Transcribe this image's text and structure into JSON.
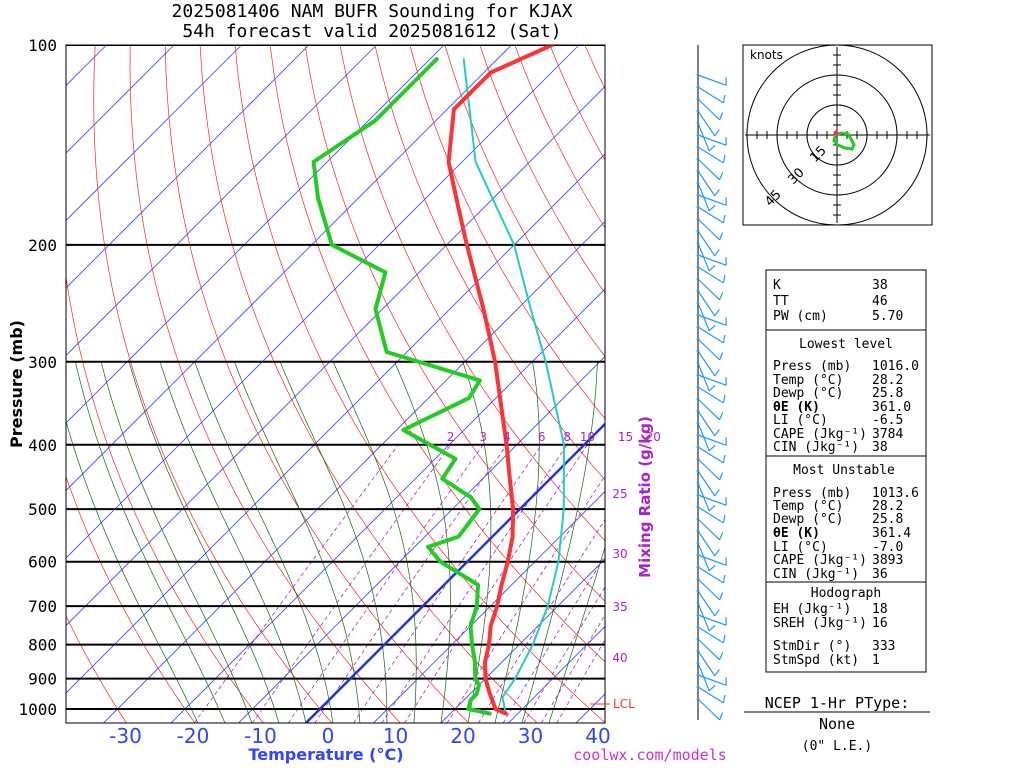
{
  "header": {
    "title_line1": "2025081406 NAM BUFR Sounding for KJAX",
    "title_line2": "54h forecast valid 2025081612 (Sat)"
  },
  "chart_data": {
    "type": "skew-t",
    "ylabel": "Pressure (mb)",
    "xlabel": "Temperature (°C)",
    "mixing_ratio_label": "Mixing Ratio (g/kg)",
    "pressure_ticks": [
      100,
      200,
      300,
      400,
      500,
      600,
      700,
      800,
      900,
      1000
    ],
    "temperature_ticks": [
      -30,
      -20,
      -10,
      0,
      10,
      20,
      30,
      40
    ],
    "mixing_ratio_ticks_top": [
      "2",
      "3",
      "4",
      "6",
      "8",
      "10",
      "15",
      "20"
    ],
    "mixing_ratio_ticks_side": [
      "25",
      "30",
      "35",
      "40"
    ],
    "lcl_label": "LCL",
    "colors": {
      "temperature": "#ff3333",
      "dewpoint": "#22cc22",
      "parcel": "#22cccc",
      "isotherm": "#3344ff",
      "dry_adiabat": "#ff2020",
      "moist_adiabat": "#116611",
      "mixing_ratio": "#aa22cc",
      "freezing_line": "#2233dd"
    },
    "series": [
      {
        "name": "Temperature",
        "points": [
          [
            1016,
            28.2
          ],
          [
            1000,
            26
          ],
          [
            950,
            23
          ],
          [
            900,
            20
          ],
          [
            850,
            17.5
          ],
          [
            800,
            15.5
          ],
          [
            750,
            13
          ],
          [
            700,
            11
          ],
          [
            650,
            8.5
          ],
          [
            600,
            6
          ],
          [
            550,
            3
          ],
          [
            500,
            -1
          ],
          [
            450,
            -6
          ],
          [
            400,
            -11.5
          ],
          [
            350,
            -18
          ],
          [
            300,
            -25.5
          ],
          [
            250,
            -35
          ],
          [
            200,
            -47
          ],
          [
            175,
            -54
          ],
          [
            150,
            -62
          ],
          [
            125,
            -69
          ],
          [
            110,
            -69
          ],
          [
            100,
            -64
          ]
        ]
      },
      {
        "name": "Dewpoint",
        "points": [
          [
            1016,
            25.8
          ],
          [
            1000,
            22
          ],
          [
            970,
            21
          ],
          [
            950,
            21
          ],
          [
            920,
            20
          ],
          [
            900,
            18.5
          ],
          [
            850,
            16
          ],
          [
            800,
            13
          ],
          [
            750,
            10
          ],
          [
            700,
            8
          ],
          [
            650,
            5
          ],
          [
            600,
            -4
          ],
          [
            570,
            -8
          ],
          [
            550,
            -5
          ],
          [
            500,
            -6
          ],
          [
            480,
            -9
          ],
          [
            450,
            -16
          ],
          [
            420,
            -17
          ],
          [
            380,
            -29
          ],
          [
            340,
            -24
          ],
          [
            320,
            -25
          ],
          [
            290,
            -43
          ],
          [
            250,
            -51
          ],
          [
            220,
            -55
          ],
          [
            200,
            -67
          ],
          [
            170,
            -76
          ],
          [
            150,
            -82
          ],
          [
            130,
            -79
          ],
          [
            110,
            -79
          ],
          [
            105,
            -79
          ]
        ]
      },
      {
        "name": "Parcel",
        "points": [
          [
            1016,
            28.2
          ],
          [
            960,
            25.3
          ],
          [
            900,
            24.4
          ],
          [
            800,
            22
          ],
          [
            700,
            18.5
          ],
          [
            600,
            13.5
          ],
          [
            500,
            6.5
          ],
          [
            400,
            -3
          ],
          [
            300,
            -18
          ],
          [
            250,
            -28
          ],
          [
            200,
            -40
          ],
          [
            150,
            -58
          ],
          [
            105,
            -75
          ]
        ]
      }
    ],
    "hodograph_rings": [
      "15",
      "30",
      "45"
    ],
    "hodograph_unit": "knots"
  },
  "indices": {
    "K": "38",
    "TT": "46",
    "PW": "5.70",
    "lowest": {
      "press": "1016.0",
      "temp": "28.2",
      "dewp": "25.8",
      "thetae": "361.0",
      "li": "-6.5",
      "cape": "3784",
      "cin": "38"
    },
    "unstable": {
      "press": "1013.6",
      "temp": "28.2",
      "dewp": "25.8",
      "thetae": "361.4",
      "li": "-7.0",
      "cape": "3893",
      "cin": "36"
    },
    "hodo": {
      "eh": "18",
      "sreh": "16",
      "stmdir": "333",
      "stmspd": "1"
    }
  },
  "labels": {
    "k": "K",
    "tt": "TT",
    "pw": "PW (cm)",
    "lowest_title": "Lowest level",
    "unstable_title": "Most Unstable",
    "hodo_title": "Hodograph",
    "press": "Press (mb)",
    "temp": "Temp (°C)",
    "dewp": "Dewp (°C)",
    "thetae": "θE (K)",
    "li": "LI (°C)",
    "cape": "CAPE (Jkg⁻¹)",
    "cin": "CIN (Jkg⁻¹)",
    "eh": "EH (Jkg⁻¹)",
    "sreh": "SREH (Jkg⁻¹)",
    "stmdir": "StmDir (°)",
    "stmspd": "StmSpd (kt)"
  },
  "ptype": {
    "title": "NCEP 1-Hr PType:",
    "value": "None",
    "accum": "(0\" L.E.)"
  },
  "credit": "coolwx.com/models"
}
